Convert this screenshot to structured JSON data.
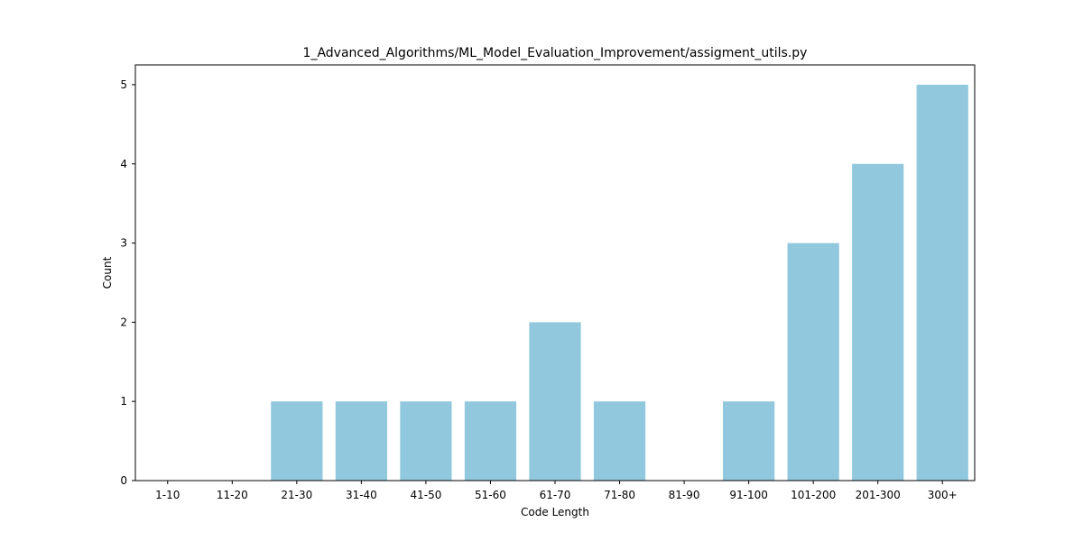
{
  "chart_data": {
    "type": "bar",
    "title": "1_Advanced_Algorithms/ML_Model_Evaluation_Improvement/assigment_utils.py",
    "xlabel": "Code Length",
    "ylabel": "Count",
    "categories": [
      "1-10",
      "11-20",
      "21-30",
      "31-40",
      "41-50",
      "51-60",
      "61-70",
      "71-80",
      "81-90",
      "91-100",
      "101-200",
      "201-300",
      "300+"
    ],
    "values": [
      0,
      0,
      1,
      1,
      1,
      1,
      2,
      1,
      0,
      1,
      3,
      4,
      5
    ],
    "ylim": [
      0,
      5.25
    ],
    "yticks": [
      0,
      1,
      2,
      3,
      4,
      5
    ],
    "bar_color": "#92c8dd",
    "grid": false,
    "legend": "none"
  }
}
